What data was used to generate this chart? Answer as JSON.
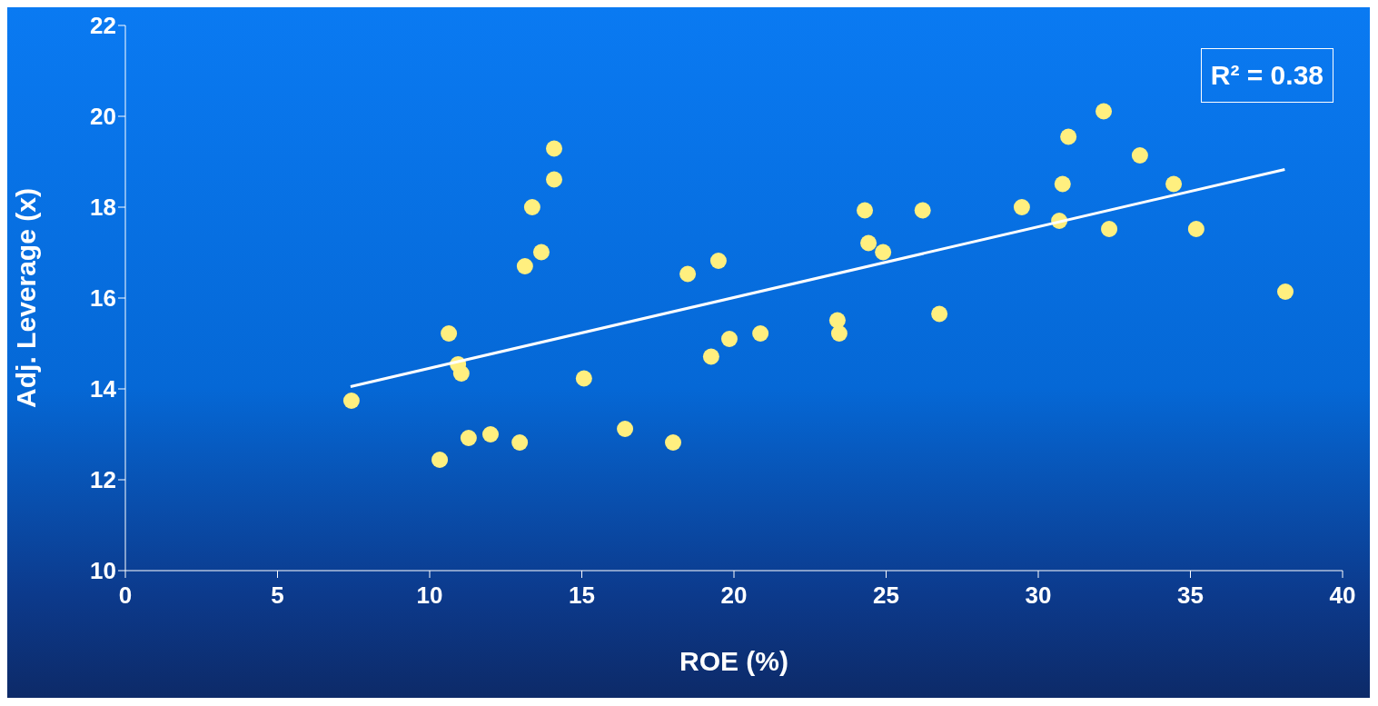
{
  "chart_data": {
    "type": "scatter",
    "xlabel": "ROE (%)",
    "ylabel": "Adj. Leverage (x)",
    "annotations": [
      "R² = 0.38"
    ],
    "xlim": [
      0,
      40
    ],
    "xticks": [
      0,
      5,
      10,
      15,
      20,
      25,
      30,
      35,
      40
    ],
    "ylim": [
      10,
      22
    ],
    "yticks": [
      10,
      12,
      14,
      16,
      18,
      20,
      22
    ],
    "grid": false,
    "legend": false,
    "marker": "circle",
    "series": [
      {
        "type": "scatter",
        "color": "#ffef7f",
        "x": [
          7.43,
          10.33,
          10.63,
          10.93,
          11.04,
          11.28,
          12.0,
          12.96,
          13.13,
          13.37,
          13.67,
          14.09,
          14.09,
          15.07,
          16.42,
          18.0,
          18.48,
          19.25,
          19.49,
          19.85,
          20.87,
          23.4,
          23.46,
          24.3,
          24.42,
          24.9,
          26.2,
          26.75,
          29.46,
          30.69,
          30.8,
          30.99,
          32.15,
          32.33,
          33.34,
          34.45,
          35.19,
          38.12
        ],
        "values": [
          13.74,
          12.44,
          15.22,
          14.54,
          14.34,
          12.92,
          13.0,
          12.82,
          16.7,
          18.0,
          17.01,
          19.29,
          18.61,
          14.23,
          13.12,
          12.82,
          16.53,
          14.71,
          16.82,
          15.1,
          15.22,
          15.51,
          15.22,
          17.93,
          17.21,
          17.01,
          17.93,
          15.65,
          18.0,
          17.7,
          18.51,
          19.55,
          20.11,
          17.52,
          19.14,
          18.51,
          17.52,
          16.14
        ]
      },
      {
        "type": "line",
        "color": "#ffffff",
        "marker": "none",
        "x": [
          7.4,
          38.1
        ],
        "values": [
          14.05,
          18.83
        ]
      }
    ]
  }
}
